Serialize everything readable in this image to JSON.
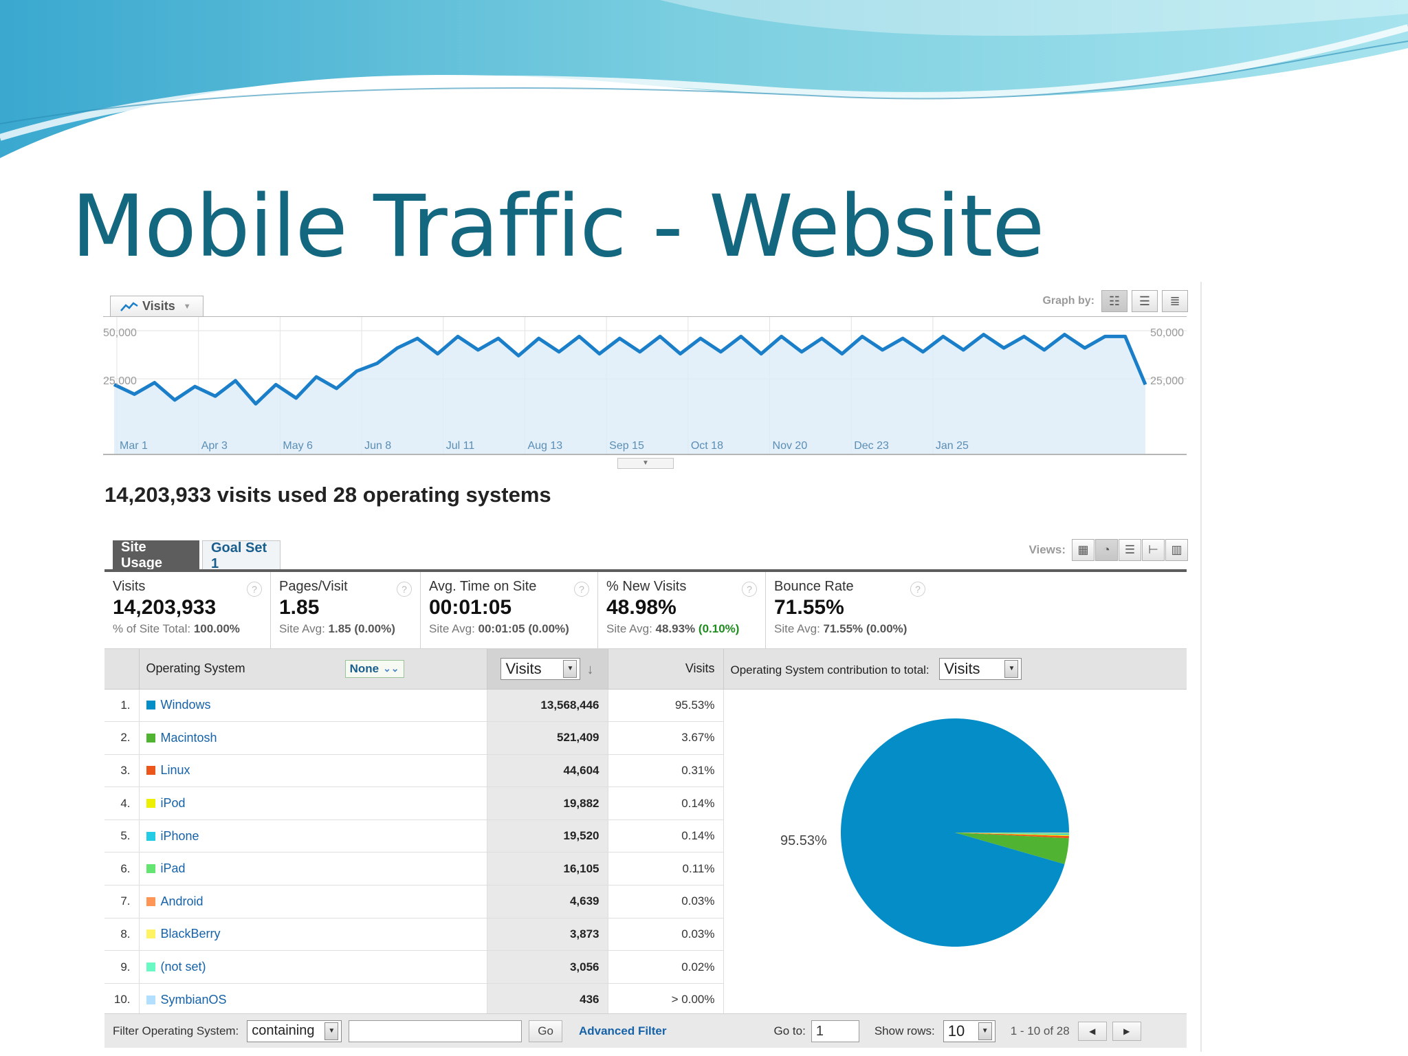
{
  "slide": {
    "title": "Mobile Traffic - Website"
  },
  "graph": {
    "metric_label": "Visits",
    "graph_by_label": "Graph by:",
    "y_ticks": [
      "50,000",
      "25,000"
    ],
    "x_labels": [
      "Mar 1",
      "Apr 3",
      "May 6",
      "Jun 8",
      "Jul 11",
      "Aug 13",
      "Sep 15",
      "Oct 18",
      "Nov 20",
      "Dec 23",
      "Jan 25"
    ],
    "line_color": "#1a7fc8",
    "fill_color": "#dcecf8"
  },
  "chart_data": {
    "type": "line",
    "x_labels": [
      "Mar 1",
      "Apr 3",
      "May 6",
      "Jun 8",
      "Jul 11",
      "Aug 13",
      "Sep 15",
      "Oct 18",
      "Nov 20",
      "Dec 23",
      "Jan 25"
    ],
    "ylim": [
      0,
      50000
    ],
    "grid": true,
    "series": [
      {
        "values": [
          22000,
          17000,
          23000,
          14000,
          21000,
          16000,
          24000,
          12000,
          22000,
          15000,
          26000,
          20000,
          29000,
          33000,
          41000,
          46000,
          38000,
          47000,
          40000,
          46000,
          37000,
          46000,
          39000,
          47000,
          38000,
          46000,
          39000,
          47000,
          38000,
          46000,
          39000,
          47000,
          38000,
          47000,
          39000,
          46000,
          38000,
          47000,
          40000,
          46000,
          39000,
          47000,
          40000,
          48000,
          41000,
          47000,
          40000,
          48000,
          41000,
          47000,
          47000,
          22000
        ]
      }
    ]
  },
  "summary": {
    "text": "14,203,933 visits used 28 operating systems"
  },
  "tabs": {
    "site_usage": "Site Usage",
    "goal_set": "Goal Set 1",
    "views_label": "Views:"
  },
  "scorecards": [
    {
      "label": "Visits",
      "value": "14,203,933",
      "sub_prefix": "% of Site Total: ",
      "sub_value": "100.00%",
      "sub_change": ""
    },
    {
      "label": "Pages/Visit",
      "value": "1.85",
      "sub_prefix": "Site Avg: ",
      "sub_value": "1.85",
      "sub_change": "(0.00%)"
    },
    {
      "label": "Avg. Time on Site",
      "value": "00:01:05",
      "sub_prefix": "Site Avg: ",
      "sub_value": "00:01:05",
      "sub_change": "(0.00%)"
    },
    {
      "label": "% New Visits",
      "value": "48.98%",
      "sub_prefix": "Site Avg: ",
      "sub_value": "48.93%",
      "sub_change": "(0.10%)"
    },
    {
      "label": "Bounce Rate",
      "value": "71.55%",
      "sub_prefix": "Site Avg: ",
      "sub_value": "71.55%",
      "sub_change": "(0.00%)"
    }
  ],
  "table": {
    "header_os": "Operating System",
    "dimension_select": "None",
    "metric_select": "Visits",
    "header_visits": "Visits",
    "contribution_label": "Operating System contribution to total:",
    "contribution_select": "Visits",
    "rows": [
      {
        "num": "1.",
        "os": "Windows",
        "visits": "13,568,446",
        "pct": "95.53%",
        "color": "#058dc7"
      },
      {
        "num": "2.",
        "os": "Macintosh",
        "visits": "521,409",
        "pct": "3.67%",
        "color": "#50b432"
      },
      {
        "num": "3.",
        "os": "Linux",
        "visits": "44,604",
        "pct": "0.31%",
        "color": "#ed561b"
      },
      {
        "num": "4.",
        "os": "iPod",
        "visits": "19,882",
        "pct": "0.14%",
        "color": "#edef00"
      },
      {
        "num": "5.",
        "os": "iPhone",
        "visits": "19,520",
        "pct": "0.14%",
        "color": "#24cbe5"
      },
      {
        "num": "6.",
        "os": "iPad",
        "visits": "16,105",
        "pct": "0.11%",
        "color": "#64e572"
      },
      {
        "num": "7.",
        "os": "Android",
        "visits": "4,639",
        "pct": "0.03%",
        "color": "#ff9655"
      },
      {
        "num": "8.",
        "os": "BlackBerry",
        "visits": "3,873",
        "pct": "0.03%",
        "color": "#fff263"
      },
      {
        "num": "9.",
        "os": "(not set)",
        "visits": "3,056",
        "pct": "0.02%",
        "color": "#6af9c4"
      },
      {
        "num": "10.",
        "os": "SymbianOS",
        "visits": "436",
        "pct": "> 0.00%",
        "color": "#b2deff"
      }
    ],
    "pie_label": "95.53%",
    "pie_values": [
      95.53,
      3.67,
      0.31,
      0.14,
      0.14,
      0.11,
      0.03,
      0.03,
      0.02,
      0.01
    ]
  },
  "footer": {
    "filter_label": "Filter Operating System:",
    "filter_mode": "containing",
    "filter_value": "",
    "go_label": "Go",
    "advanced_filter": "Advanced Filter",
    "goto_label": "Go to:",
    "goto_value": "1",
    "show_rows_label": "Show rows:",
    "show_rows_value": "10",
    "range": "1 - 10 of 28"
  }
}
